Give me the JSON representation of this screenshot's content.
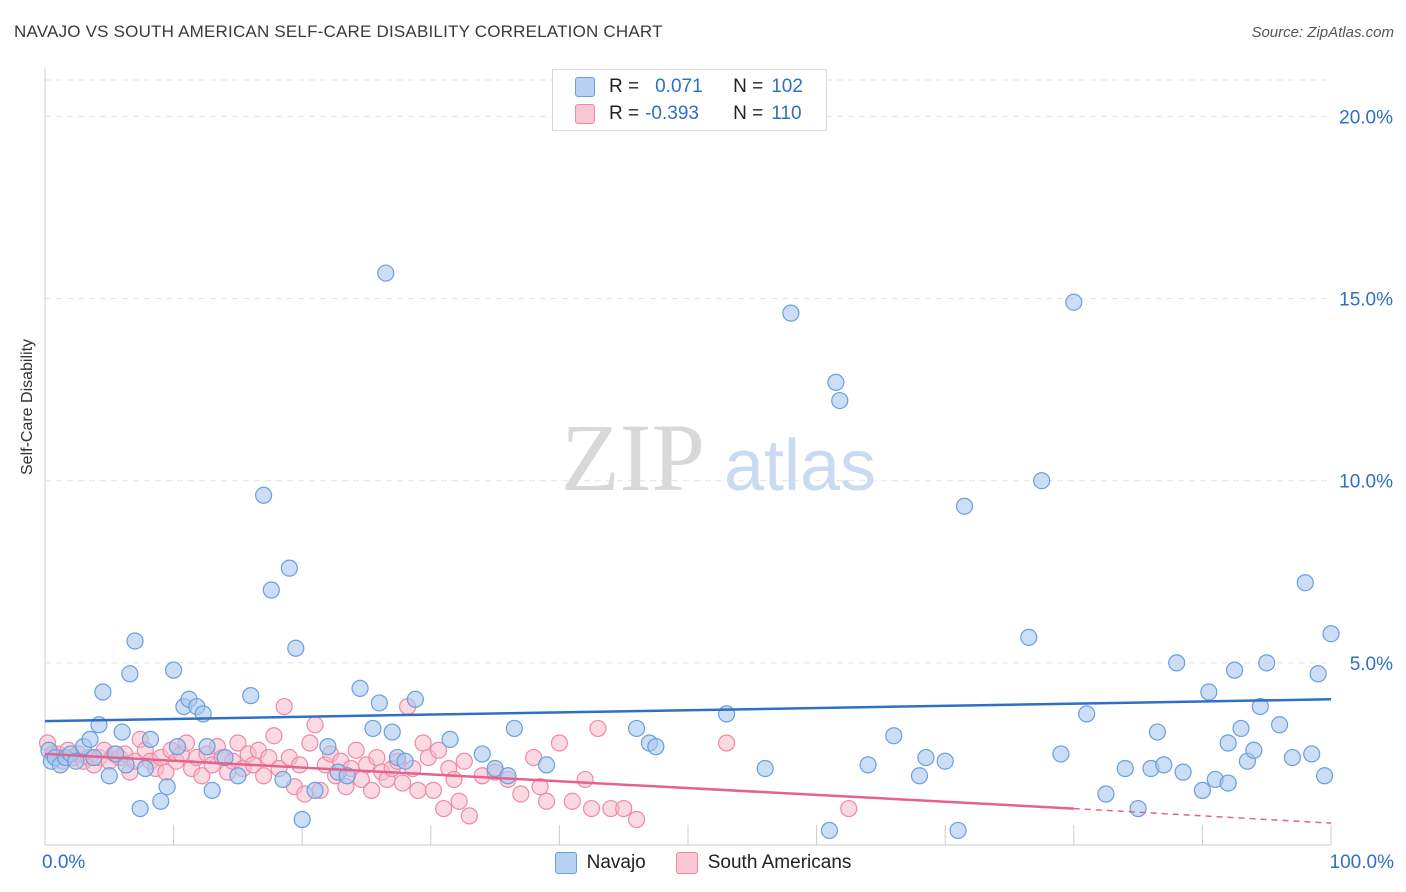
{
  "title": "NAVAJO VS SOUTH AMERICAN SELF-CARE DISABILITY CORRELATION CHART",
  "source": "Source: ZipAtlas.com",
  "watermark": {
    "zip": "ZIP",
    "atlas": "atlas"
  },
  "legend": {
    "series1": {
      "r_label": "R =",
      "r_value": "0.071",
      "n_label": "N =",
      "n_value": "102"
    },
    "series2": {
      "r_label": "R =",
      "r_value": "-0.393",
      "n_label": "N =",
      "n_value": "110"
    }
  },
  "colors": {
    "navajo_fill": "#a9c8f0",
    "navajo_stroke": "#6a9fdc",
    "navajo_line": "#2f6fc4",
    "south_fill": "#f7b9ca",
    "south_stroke": "#ee89a8",
    "south_line": "#e5628e",
    "grid": "#e2e2e2",
    "axis_text": "#2f6fc4"
  },
  "chart_data": {
    "type": "scatter",
    "title": "NAVAJO VS SOUTH AMERICAN SELF-CARE DISABILITY CORRELATION CHART",
    "xlabel": "",
    "ylabel": "Self-Care Disability",
    "xlim": [
      0,
      100
    ],
    "ylim": [
      0,
      21
    ],
    "x_tick_labels": [
      "0.0%",
      "100.0%"
    ],
    "y_ticks": [
      5,
      10,
      15,
      20
    ],
    "y_tick_labels": [
      "5.0%",
      "10.0%",
      "15.0%",
      "20.0%"
    ],
    "legend_position": "top-center",
    "series": [
      {
        "name": "Navajo",
        "trend": {
          "x": [
            0,
            100
          ],
          "y": [
            3.4,
            4.0
          ]
        },
        "points": [
          [
            0.3,
            2.6
          ],
          [
            0.5,
            2.3
          ],
          [
            0.8,
            2.4
          ],
          [
            1.2,
            2.2
          ],
          [
            1.6,
            2.4
          ],
          [
            2,
            2.5
          ],
          [
            2.4,
            2.3
          ],
          [
            3,
            2.7
          ],
          [
            3.5,
            2.9
          ],
          [
            3.8,
            2.4
          ],
          [
            4.2,
            3.3
          ],
          [
            4.5,
            4.2
          ],
          [
            5,
            1.9
          ],
          [
            5.5,
            2.5
          ],
          [
            6,
            3.1
          ],
          [
            6.3,
            2.2
          ],
          [
            6.6,
            4.7
          ],
          [
            7,
            5.6
          ],
          [
            7.4,
            1.0
          ],
          [
            7.8,
            2.1
          ],
          [
            8.2,
            2.9
          ],
          [
            9,
            1.2
          ],
          [
            9.5,
            1.6
          ],
          [
            10,
            4.8
          ],
          [
            10.3,
            2.7
          ],
          [
            10.8,
            3.8
          ],
          [
            11.2,
            4.0
          ],
          [
            11.8,
            3.8
          ],
          [
            12.3,
            3.6
          ],
          [
            12.6,
            2.7
          ],
          [
            13,
            1.5
          ],
          [
            14,
            2.4
          ],
          [
            15,
            1.9
          ],
          [
            16,
            4.1
          ],
          [
            17,
            9.6
          ],
          [
            17.6,
            7.0
          ],
          [
            18.5,
            1.8
          ],
          [
            19,
            7.6
          ],
          [
            19.5,
            5.4
          ],
          [
            20,
            0.7
          ],
          [
            21,
            1.5
          ],
          [
            22,
            2.7
          ],
          [
            22.8,
            2.0
          ],
          [
            23.5,
            1.9
          ],
          [
            24.5,
            4.3
          ],
          [
            25.5,
            3.2
          ],
          [
            26,
            3.9
          ],
          [
            26.5,
            15.7
          ],
          [
            27,
            3.1
          ],
          [
            27.4,
            2.4
          ],
          [
            28,
            2.3
          ],
          [
            28.8,
            4.0
          ],
          [
            31.5,
            2.9
          ],
          [
            34,
            2.5
          ],
          [
            35,
            2.1
          ],
          [
            36,
            1.9
          ],
          [
            36.5,
            3.2
          ],
          [
            39,
            2.2
          ],
          [
            46,
            3.2
          ],
          [
            47,
            2.8
          ],
          [
            47.5,
            2.7
          ],
          [
            53,
            3.6
          ],
          [
            56,
            2.1
          ],
          [
            58,
            14.6
          ],
          [
            61,
            0.4
          ],
          [
            61.5,
            12.7
          ],
          [
            61.8,
            12.2
          ],
          [
            64,
            2.2
          ],
          [
            66,
            3.0
          ],
          [
            68,
            1.9
          ],
          [
            68.5,
            2.4
          ],
          [
            70,
            2.3
          ],
          [
            71,
            0.4
          ],
          [
            71.5,
            9.3
          ],
          [
            76.5,
            5.7
          ],
          [
            77.5,
            10.0
          ],
          [
            79,
            2.5
          ],
          [
            80,
            14.9
          ],
          [
            81,
            3.6
          ],
          [
            82.5,
            1.4
          ],
          [
            84,
            2.1
          ],
          [
            85,
            1.0
          ],
          [
            86,
            2.1
          ],
          [
            86.5,
            3.1
          ],
          [
            87,
            2.2
          ],
          [
            88,
            5.0
          ],
          [
            88.5,
            2.0
          ],
          [
            90,
            1.5
          ],
          [
            90.5,
            4.2
          ],
          [
            91,
            1.8
          ],
          [
            92,
            1.7
          ],
          [
            92,
            2.8
          ],
          [
            92.5,
            4.8
          ],
          [
            93,
            3.2
          ],
          [
            93.5,
            2.3
          ],
          [
            94,
            2.6
          ],
          [
            94.5,
            3.8
          ],
          [
            95,
            5.0
          ],
          [
            96,
            3.3
          ],
          [
            97,
            2.4
          ],
          [
            98,
            7.2
          ],
          [
            98.5,
            2.5
          ],
          [
            99,
            4.7
          ],
          [
            99.5,
            1.9
          ],
          [
            100,
            5.8
          ]
        ]
      },
      {
        "name": "South Americans",
        "trend": {
          "x": [
            0,
            80,
            100
          ],
          "y": [
            2.5,
            1.0,
            0.6
          ],
          "solid_until": 80
        },
        "points": [
          [
            0.2,
            2.8
          ],
          [
            0.6,
            2.5
          ],
          [
            1,
            2.5
          ],
          [
            1.4,
            2.3
          ],
          [
            1.8,
            2.6
          ],
          [
            2.2,
            2.4
          ],
          [
            2.6,
            2.5
          ],
          [
            3,
            2.3
          ],
          [
            3.4,
            2.4
          ],
          [
            3.8,
            2.2
          ],
          [
            4.2,
            2.4
          ],
          [
            4.6,
            2.6
          ],
          [
            5,
            2.3
          ],
          [
            5.4,
            2.5
          ],
          [
            5.8,
            2.4
          ],
          [
            6.2,
            2.5
          ],
          [
            6.6,
            2.0
          ],
          [
            7,
            2.3
          ],
          [
            7.4,
            2.9
          ],
          [
            7.8,
            2.6
          ],
          [
            8.2,
            2.3
          ],
          [
            8.6,
            2.1
          ],
          [
            9,
            2.4
          ],
          [
            9.4,
            2.0
          ],
          [
            9.8,
            2.6
          ],
          [
            10.2,
            2.3
          ],
          [
            10.6,
            2.5
          ],
          [
            11,
            2.8
          ],
          [
            11.4,
            2.1
          ],
          [
            11.8,
            2.4
          ],
          [
            12.2,
            1.9
          ],
          [
            12.6,
            2.5
          ],
          [
            13,
            2.2
          ],
          [
            13.4,
            2.7
          ],
          [
            13.8,
            2.4
          ],
          [
            14.2,
            2.0
          ],
          [
            14.6,
            2.3
          ],
          [
            15,
            2.8
          ],
          [
            15.4,
            2.1
          ],
          [
            15.8,
            2.5
          ],
          [
            16.2,
            2.2
          ],
          [
            16.6,
            2.6
          ],
          [
            17,
            1.9
          ],
          [
            17.4,
            2.4
          ],
          [
            17.8,
            3.0
          ],
          [
            18.2,
            2.1
          ],
          [
            18.6,
            3.8
          ],
          [
            19,
            2.4
          ],
          [
            19.4,
            1.6
          ],
          [
            19.8,
            2.2
          ],
          [
            20.2,
            1.4
          ],
          [
            20.6,
            2.8
          ],
          [
            21,
            3.3
          ],
          [
            21.4,
            1.5
          ],
          [
            21.8,
            2.2
          ],
          [
            22.2,
            2.5
          ],
          [
            22.6,
            1.9
          ],
          [
            23,
            2.3
          ],
          [
            23.4,
            1.6
          ],
          [
            23.8,
            2.1
          ],
          [
            24.2,
            2.6
          ],
          [
            24.6,
            1.8
          ],
          [
            25,
            2.2
          ],
          [
            25.4,
            1.5
          ],
          [
            25.8,
            2.4
          ],
          [
            26.2,
            2.0
          ],
          [
            26.6,
            1.8
          ],
          [
            27,
            2.1
          ],
          [
            27.4,
            2.3
          ],
          [
            27.8,
            1.7
          ],
          [
            28.2,
            3.8
          ],
          [
            28.6,
            2.1
          ],
          [
            29,
            1.5
          ],
          [
            29.4,
            2.8
          ],
          [
            29.8,
            2.4
          ],
          [
            30.2,
            1.5
          ],
          [
            30.6,
            2.6
          ],
          [
            31,
            1.0
          ],
          [
            31.4,
            2.1
          ],
          [
            31.8,
            1.8
          ],
          [
            32.2,
            1.2
          ],
          [
            32.6,
            2.3
          ],
          [
            33,
            0.8
          ],
          [
            34,
            1.9
          ],
          [
            35,
            2.0
          ],
          [
            36,
            1.8
          ],
          [
            37,
            1.4
          ],
          [
            38,
            2.4
          ],
          [
            38.5,
            1.6
          ],
          [
            39,
            1.2
          ],
          [
            40,
            2.8
          ],
          [
            41,
            1.2
          ],
          [
            42,
            1.8
          ],
          [
            42.5,
            1.0
          ],
          [
            43,
            3.2
          ],
          [
            44,
            1.0
          ],
          [
            45,
            1.0
          ],
          [
            46,
            0.7
          ],
          [
            53,
            2.8
          ],
          [
            62.5,
            1.0
          ]
        ]
      }
    ]
  }
}
